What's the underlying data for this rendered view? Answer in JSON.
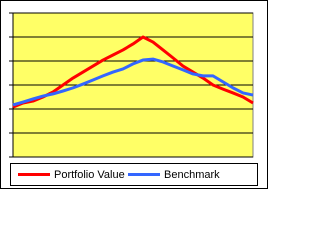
{
  "chart_data": {
    "type": "line",
    "x": [
      0,
      1,
      2,
      3,
      4,
      5,
      6,
      7,
      8,
      9,
      10,
      11,
      12,
      13,
      14,
      15,
      16,
      17,
      18,
      19,
      20,
      21,
      22,
      23,
      24
    ],
    "xlim": [
      0,
      24
    ],
    "ylim": [
      0,
      6
    ],
    "yticks": [
      0,
      1,
      2,
      3,
      4,
      5,
      6
    ],
    "grid": true,
    "plot_background": "#ffff66",
    "legend": "bottom",
    "series": [
      {
        "name": "Portfolio Value",
        "color": "#ff0000",
        "values": [
          2.08,
          2.25,
          2.33,
          2.5,
          2.71,
          3.0,
          3.29,
          3.54,
          3.79,
          4.04,
          4.25,
          4.46,
          4.71,
          5.0,
          4.79,
          4.46,
          4.13,
          3.79,
          3.54,
          3.29,
          3.0,
          2.83,
          2.67,
          2.5,
          2.25
        ]
      },
      {
        "name": "Benchmark",
        "color": "#3366ff",
        "values": [
          2.17,
          2.29,
          2.42,
          2.54,
          2.63,
          2.75,
          2.88,
          3.04,
          3.21,
          3.38,
          3.54,
          3.67,
          3.88,
          4.04,
          4.08,
          3.96,
          3.79,
          3.63,
          3.46,
          3.38,
          3.38,
          3.13,
          2.88,
          2.67,
          2.58
        ]
      }
    ]
  }
}
